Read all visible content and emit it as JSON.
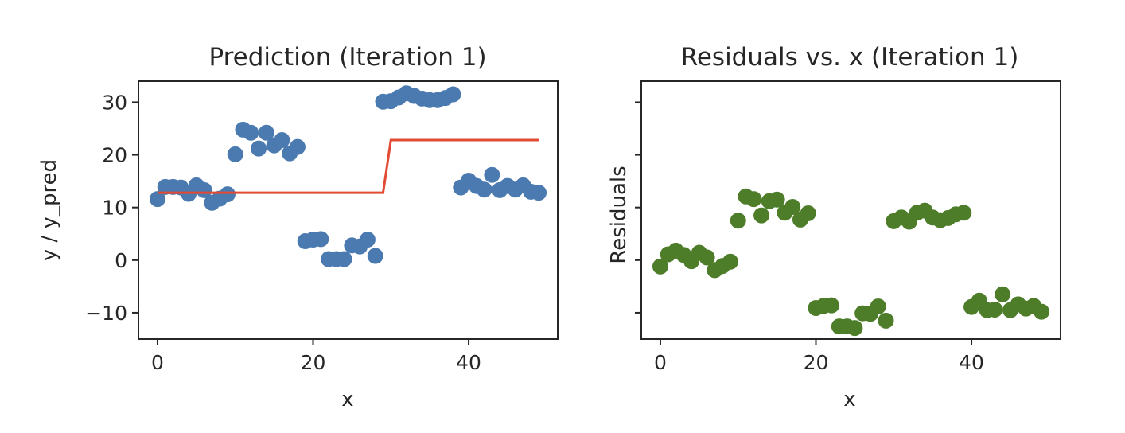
{
  "chart_data": [
    {
      "type": "scatter",
      "title": "Prediction (Iteration 1)",
      "xlabel": "x",
      "ylabel": "y / y_pred",
      "xlim": [
        -2.45,
        51.45
      ],
      "ylim": [
        -15,
        34
      ],
      "xticks": [
        0,
        20,
        40
      ],
      "yticks": [
        -10,
        0,
        10,
        20,
        30
      ],
      "xtick_labels": [
        "0",
        "20",
        "40"
      ],
      "ytick_labels": [
        "−10",
        "0",
        "10",
        "20",
        "30"
      ],
      "grid": false,
      "series": [
        {
          "kind": "scatter",
          "color": "#4a7ab0",
          "x": [
            0,
            1,
            2,
            3,
            4,
            5,
            6,
            7,
            8,
            9,
            10,
            11,
            12,
            13,
            14,
            15,
            16,
            17,
            18,
            19,
            20,
            21,
            22,
            23,
            24,
            25,
            26,
            27,
            28,
            29,
            30,
            31,
            32,
            33,
            34,
            35,
            36,
            37,
            38,
            39,
            40,
            41,
            42,
            43,
            44,
            45,
            46,
            47,
            48,
            49
          ],
          "y": [
            11.6,
            13.9,
            13.9,
            13.8,
            12.6,
            14.2,
            13.3,
            10.9,
            11.7,
            12.5,
            20.1,
            24.8,
            24.2,
            21.2,
            24.2,
            21.8,
            22.8,
            20.3,
            21.5,
            3.6,
            3.9,
            4.0,
            0.2,
            0.2,
            0.2,
            2.8,
            2.6,
            3.9,
            0.8,
            30.1,
            30.2,
            30.9,
            31.7,
            31.2,
            30.7,
            30.4,
            30.4,
            30.8,
            31.5,
            13.8,
            15.1,
            14.1,
            13.4,
            16.2,
            13.3,
            14.1,
            13.4,
            14.2,
            13.0,
            12.8
          ]
        },
        {
          "kind": "line",
          "color": "#e24a33",
          "x": [
            0,
            29,
            30,
            49
          ],
          "y": [
            12.8,
            12.8,
            22.8,
            22.8
          ]
        }
      ]
    },
    {
      "type": "scatter",
      "title": "Residuals vs. x (Iteration 1)",
      "xlabel": "x",
      "ylabel": "Residuals",
      "xlim": [
        -2.45,
        51.45
      ],
      "ylim": [
        -15,
        34
      ],
      "xticks": [
        0,
        20,
        40
      ],
      "yticks": [
        -10,
        0,
        10,
        20,
        30
      ],
      "xtick_labels": [
        "0",
        "20",
        "40"
      ],
      "grid": false,
      "series": [
        {
          "kind": "scatter",
          "color": "#4e7d2a",
          "x": [
            0,
            1,
            2,
            3,
            4,
            5,
            6,
            7,
            8,
            9,
            10,
            11,
            12,
            13,
            14,
            15,
            16,
            17,
            18,
            19,
            20,
            21,
            22,
            23,
            24,
            25,
            26,
            27,
            28,
            29,
            30,
            31,
            32,
            33,
            34,
            35,
            36,
            37,
            38,
            39,
            40,
            41,
            42,
            43,
            44,
            45,
            46,
            47,
            48,
            49
          ],
          "y": [
            -1.2,
            1.1,
            1.8,
            1.0,
            -0.2,
            1.4,
            0.5,
            -1.9,
            -1.1,
            -0.3,
            7.5,
            12.1,
            11.6,
            8.5,
            11.2,
            11.5,
            9.0,
            10.1,
            7.7,
            8.9,
            -9.1,
            -8.7,
            -8.6,
            -12.6,
            -12.6,
            -12.9,
            -10.1,
            -10.2,
            -8.8,
            -11.5,
            7.4,
            8.1,
            7.3,
            9.0,
            9.4,
            8.1,
            7.6,
            8.0,
            8.7,
            9.0,
            -8.9,
            -7.7,
            -9.5,
            -9.4,
            -6.5,
            -9.5,
            -8.4,
            -9.2,
            -8.7,
            -9.8
          ]
        }
      ]
    }
  ]
}
